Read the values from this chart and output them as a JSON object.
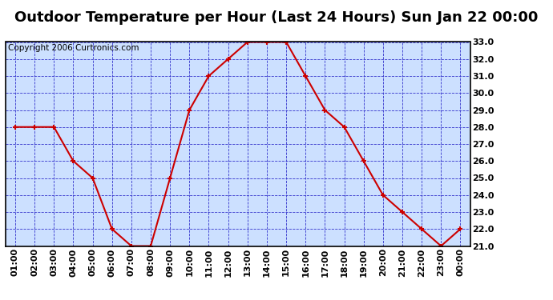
{
  "title": "Outdoor Temperature per Hour (Last 24 Hours) Sun Jan 22 00:00",
  "copyright": "Copyright 2006 Curtronics.com",
  "hours": [
    "01:00",
    "02:00",
    "03:00",
    "04:00",
    "05:00",
    "06:00",
    "07:00",
    "08:00",
    "09:00",
    "10:00",
    "11:00",
    "12:00",
    "13:00",
    "14:00",
    "15:00",
    "16:00",
    "17:00",
    "18:00",
    "19:00",
    "20:00",
    "21:00",
    "22:00",
    "23:00",
    "00:00"
  ],
  "temps": [
    28.0,
    28.0,
    28.0,
    26.0,
    25.0,
    22.0,
    21.0,
    21.0,
    25.0,
    29.0,
    31.0,
    32.0,
    33.0,
    33.0,
    33.0,
    31.0,
    29.0,
    28.0,
    26.0,
    24.0,
    23.0,
    22.0,
    21.0,
    22.0
  ],
  "ylim_min": 21.0,
  "ylim_max": 33.0,
  "ytick_step": 1.0,
  "line_color": "#cc0000",
  "marker_color": "#cc0000",
  "fig_bg_color": "#ffffff",
  "plot_bg_color": "#cce0ff",
  "grid_color": "#3333cc",
  "title_fontsize": 13,
  "copyright_fontsize": 7.5,
  "axis_label_color": "#000000",
  "border_color": "#000000",
  "tick_label_fontsize": 8,
  "tick_label_fontweight": "bold"
}
